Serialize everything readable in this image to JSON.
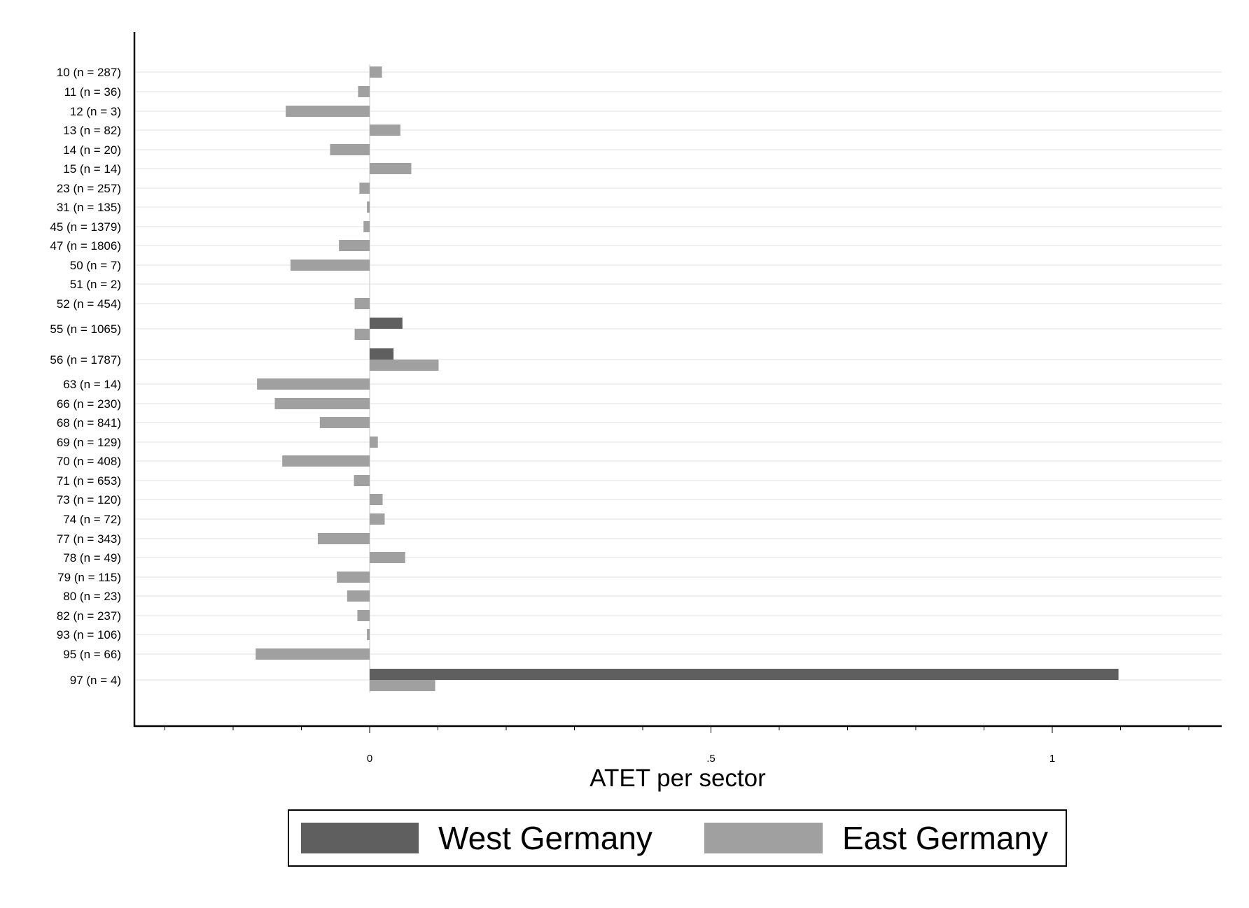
{
  "chart_data": {
    "type": "bar",
    "orientation": "horizontal",
    "xlabel": "ATET per sector",
    "ylabel": "",
    "xlim": [
      -0.3,
      1.24
    ],
    "xticks": [
      0,
      0.5,
      1
    ],
    "xtick_labels": [
      "0",
      ".5",
      "1"
    ],
    "grid": true,
    "legend_position": "bottom",
    "colors": {
      "West Germany": "#5f5f5f",
      "East Germany": "#a0a0a0"
    },
    "categories": [
      "10 (n = 287)",
      "11 (n = 36)",
      "12 (n = 3)",
      "13 (n = 82)",
      "14 (n = 20)",
      "15 (n = 14)",
      "23 (n = 257)",
      "31 (n = 135)",
      "45 (n = 1379)",
      "47 (n = 1806)",
      "50 (n = 7)",
      "51 (n = 2)",
      "52 (n = 454)",
      "55 (n = 1065)",
      "56 (n = 1787)",
      "63 (n = 14)",
      "66 (n = 230)",
      "68 (n = 841)",
      "69 (n = 129)",
      "70 (n = 408)",
      "71 (n = 653)",
      "73 (n = 120)",
      "74 (n = 72)",
      "77 (n = 343)",
      "78 (n = 49)",
      "79 (n = 115)",
      "80 (n = 23)",
      "82 (n = 237)",
      "93 (n = 106)",
      "95 (n = 66)",
      "97 (n = 4)"
    ],
    "series": [
      {
        "name": "West Germany",
        "values": [
          null,
          null,
          null,
          null,
          null,
          null,
          null,
          null,
          null,
          null,
          null,
          null,
          null,
          0.048,
          0.035,
          null,
          null,
          null,
          null,
          null,
          null,
          null,
          null,
          null,
          null,
          null,
          null,
          null,
          null,
          null,
          1.097
        ]
      },
      {
        "name": "East Germany",
        "values": [
          0.018,
          -0.017,
          -0.123,
          0.045,
          -0.058,
          0.061,
          -0.015,
          -0.004,
          -0.009,
          -0.045,
          -0.116,
          0.0,
          -0.022,
          -0.022,
          0.101,
          -0.165,
          -0.139,
          -0.073,
          0.012,
          -0.128,
          -0.023,
          0.019,
          0.022,
          -0.076,
          0.052,
          -0.048,
          -0.033,
          -0.018,
          -0.004,
          -0.167,
          0.096
        ]
      }
    ]
  },
  "legend": {
    "items": [
      {
        "label": "West Germany",
        "color": "#5f5f5f"
      },
      {
        "label": "East Germany",
        "color": "#a0a0a0"
      }
    ]
  }
}
